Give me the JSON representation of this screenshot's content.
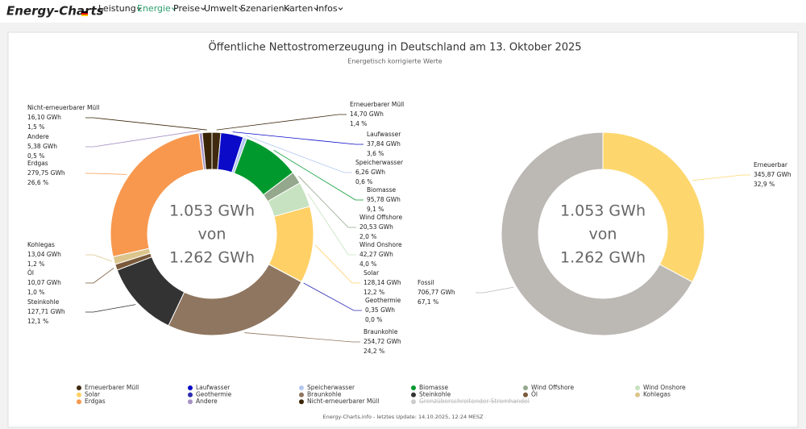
{
  "nav": {
    "logo": "Energy-Charts",
    "items": [
      "Leistung",
      "Energie",
      "Preise",
      "Umwelt",
      "Szenarien",
      "Karten",
      "Infos"
    ]
  },
  "chart_data": [
    {
      "type": "pie",
      "title": "Öffentliche Nettostromerzeugung in Deutschland am 13. Oktober 2025",
      "subtitle": "Energetisch korrigierte Werte",
      "center_label": [
        "1.053 GWh",
        "von",
        "1.262 GWh"
      ],
      "categories": [
        "Erneuerbarer Müll",
        "Laufwasser",
        "Speicherwasser",
        "Biomasse",
        "Wind Offshore",
        "Wind Onshore",
        "Solar",
        "Geothermie",
        "Braunkohle",
        "Steinkohle",
        "Öl",
        "Kohlegas",
        "Erdgas",
        "Andere",
        "Nicht-erneuerbarer Müll",
        "Grenzüberschreitender Stromhandel"
      ],
      "values": [
        14.7,
        37.84,
        6.26,
        95.78,
        20.53,
        42.27,
        128.14,
        0.35,
        254.72,
        127.71,
        10.07,
        13.04,
        279.75,
        5.38,
        16.1,
        null
      ],
      "value_labels": [
        "14,70 GWh",
        "37,84 GWh",
        "6,26 GWh",
        "95,78 GWh",
        "20,53 GWh",
        "42,27 GWh",
        "128,14 GWh",
        "0,35 GWh",
        "254,72 GWh",
        "127,71 GWh",
        "10,07 GWh",
        "13,04 GWh",
        "279,75 GWh",
        "5,38 GWh",
        "16,10 GWh",
        null
      ],
      "shares": [
        1.4,
        3.6,
        0.6,
        9.1,
        2.0,
        4.0,
        12.2,
        0.0,
        24.2,
        12.1,
        1.0,
        1.2,
        26.6,
        0.5,
        1.5,
        null
      ],
      "share_labels": [
        "1,4 %",
        "3,6 %",
        "0,6 %",
        "9,1 %",
        "2,0 %",
        "4,0 %",
        "12,2 %",
        "0,0 %",
        "24,2 %",
        "12,1 %",
        "1,0 %",
        "1,2 %",
        "26,6 %",
        "0,5 %",
        "1,5 %",
        null
      ],
      "colors": [
        "#3f2a10",
        "#0a0ac8",
        "#b4c8ee",
        "#00992e",
        "#93a88c",
        "#c6e2c0",
        "#ffd066",
        "#2d2db4",
        "#8f7660",
        "#333333",
        "#7a5a3a",
        "#dcc58c",
        "#f7984e",
        "#a592c4",
        "#3a2406",
        "#cccccc"
      ],
      "legend": true
    },
    {
      "type": "pie",
      "center_label": [
        "1.053 GWh",
        "von",
        "1.262 GWh"
      ],
      "categories": [
        "Erneuerbar",
        "Fossil"
      ],
      "values": [
        345.87,
        706.77
      ],
      "value_labels": [
        "345,87 GWh",
        "706,77 GWh"
      ],
      "shares": [
        32.9,
        67.1
      ],
      "share_labels": [
        "32,9 %",
        "67,1 %"
      ],
      "colors": [
        "#fdd76e",
        "#bcb8b4"
      ],
      "legend": false
    }
  ],
  "footer": "Energy-Charts.info - letztes Update: 14.10.2025, 12:24 MESZ"
}
